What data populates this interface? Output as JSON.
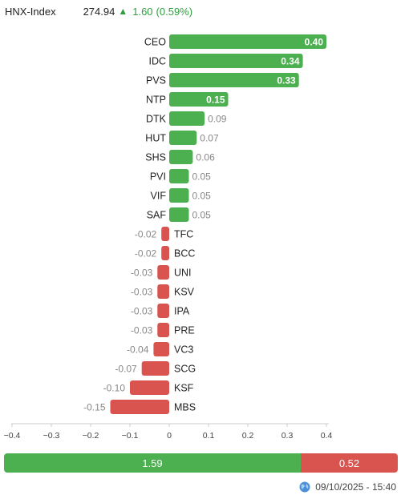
{
  "header": {
    "index_name": "HNX-Index",
    "index_value": "274.94",
    "arrow": "▲",
    "change": "1.60",
    "change_pct": "(0.59%)"
  },
  "colors": {
    "positive": "#4caf50",
    "negative": "#d9534f",
    "up_text": "#2e9e3e"
  },
  "chart_data": {
    "type": "bar",
    "orientation": "horizontal",
    "categories": [
      "CEO",
      "IDC",
      "PVS",
      "NTP",
      "DTK",
      "HUT",
      "SHS",
      "PVI",
      "VIF",
      "SAF",
      "TFC",
      "BCC",
      "UNI",
      "KSV",
      "IPA",
      "PRE",
      "VC3",
      "SCG",
      "KSF",
      "MBS"
    ],
    "values": [
      0.4,
      0.34,
      0.33,
      0.15,
      0.09,
      0.07,
      0.06,
      0.05,
      0.05,
      0.05,
      -0.02,
      -0.02,
      -0.03,
      -0.03,
      -0.03,
      -0.03,
      -0.04,
      -0.07,
      -0.1,
      -0.15
    ],
    "value_labels": [
      "0.40",
      "0.34",
      "0.33",
      "0.15",
      "0.09",
      "0.07",
      "0.06",
      "0.05",
      "0.05",
      "0.05",
      "-0.02",
      "-0.02",
      "-0.03",
      "-0.03",
      "-0.03",
      "-0.03",
      "-0.04",
      "-0.07",
      "-0.10",
      "-0.15"
    ],
    "xlim": [
      -0.4,
      0.4
    ],
    "xticks": [
      -0.4,
      -0.3,
      -0.2,
      -0.1,
      0,
      0.1,
      0.2,
      0.3,
      0.4
    ],
    "xtick_labels": [
      "−0.4",
      "−0.3",
      "−0.2",
      "−0.1",
      "0",
      "0.1",
      "0.2",
      "0.3",
      "0.4"
    ],
    "grid": false,
    "legend": "none"
  },
  "summary": {
    "positive_total": "1.59",
    "negative_total": "0.52",
    "positive_value": 1.59,
    "negative_value": 0.52
  },
  "footer": {
    "icon": "globe-icon",
    "timestamp": "09/10/2025 - 15:40"
  }
}
